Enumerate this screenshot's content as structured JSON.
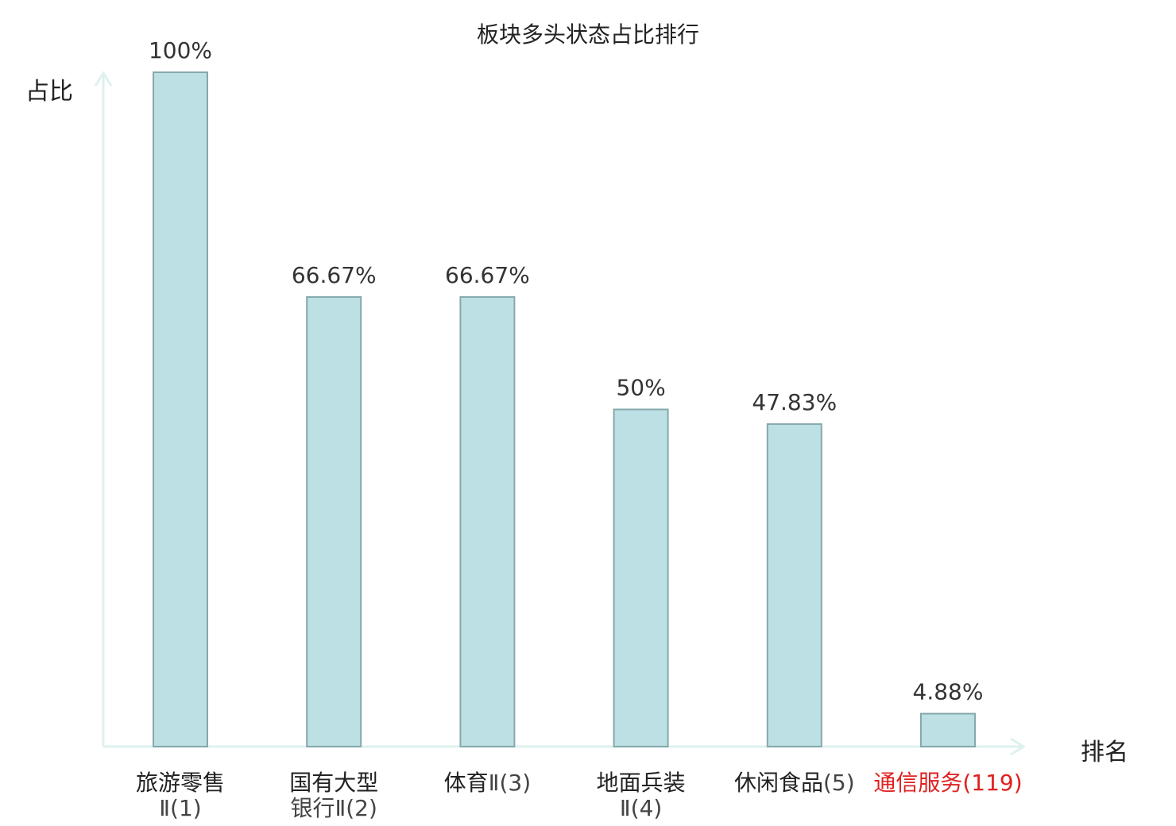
{
  "chart_data": {
    "type": "bar",
    "title": "板块多头状态占比排行",
    "xlabel": "排名",
    "ylabel": "占比",
    "ylim": [
      0,
      100
    ],
    "grid": false,
    "legend": "none",
    "categories": [
      {
        "name": "旅游零售",
        "rank": "Ⅱ(1)",
        "highlight": false
      },
      {
        "name": "国有大型",
        "rank": "银行Ⅱ(2)",
        "highlight": false
      },
      {
        "name": "体育",
        "rank": "Ⅱ(3)",
        "highlight": false
      },
      {
        "name": "地面兵装",
        "rank": "Ⅱ(4)",
        "highlight": false
      },
      {
        "name": "休闲食品",
        "rank": "(5)",
        "highlight": false
      },
      {
        "name": "通信服务",
        "rank": "(119)",
        "highlight": true
      }
    ],
    "values": [
      100,
      66.67,
      66.67,
      50,
      47.83,
      4.88
    ],
    "value_labels": [
      "100%",
      "66.67%",
      "66.67%",
      "50%",
      "47.83%",
      "4.88%"
    ]
  },
  "colors": {
    "bar_fill": "#bce0e3",
    "bar_stroke": "#86a8ac",
    "axis": "#def1ef",
    "text": "#222222",
    "value_text": "#333333",
    "rank_text": "#444444",
    "highlight": "#e02020"
  }
}
